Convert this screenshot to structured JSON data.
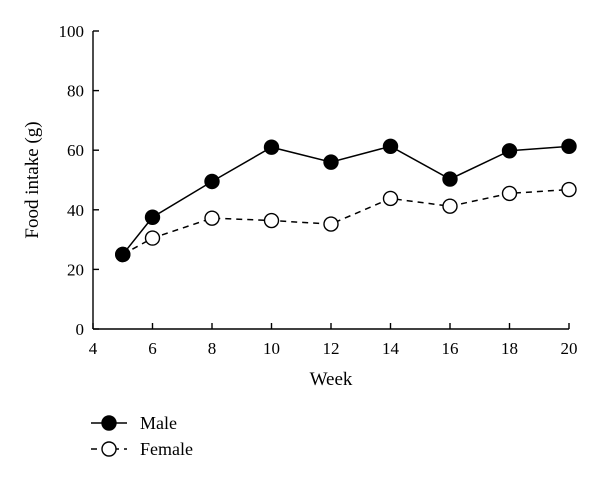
{
  "chart_data": {
    "type": "line",
    "xlabel": "Week",
    "ylabel": "Food intake (g)",
    "xlim": [
      4,
      20
    ],
    "ylim": [
      0,
      100
    ],
    "xticks": [
      4,
      6,
      8,
      10,
      12,
      14,
      16,
      18,
      20
    ],
    "yticks": [
      0,
      20,
      40,
      60,
      80,
      100
    ],
    "grid": false,
    "legend_position": "bottom-left",
    "series": [
      {
        "name": "Male",
        "marker": "filled-circle",
        "line_style": "solid",
        "color": "#000000",
        "x": [
          5,
          6,
          8,
          10,
          12,
          14,
          16,
          18,
          20
        ],
        "y": [
          25,
          37.5,
          49.5,
          61,
          56,
          61.3,
          50.3,
          59.8,
          61.3
        ]
      },
      {
        "name": "Female",
        "marker": "open-circle",
        "line_style": "dashed",
        "color": "#000000",
        "x": [
          5,
          6,
          8,
          10,
          12,
          14,
          16,
          18,
          20
        ],
        "y": [
          25,
          30.5,
          37.2,
          36.4,
          35.2,
          43.8,
          41.2,
          45.5,
          46.8
        ]
      }
    ]
  }
}
